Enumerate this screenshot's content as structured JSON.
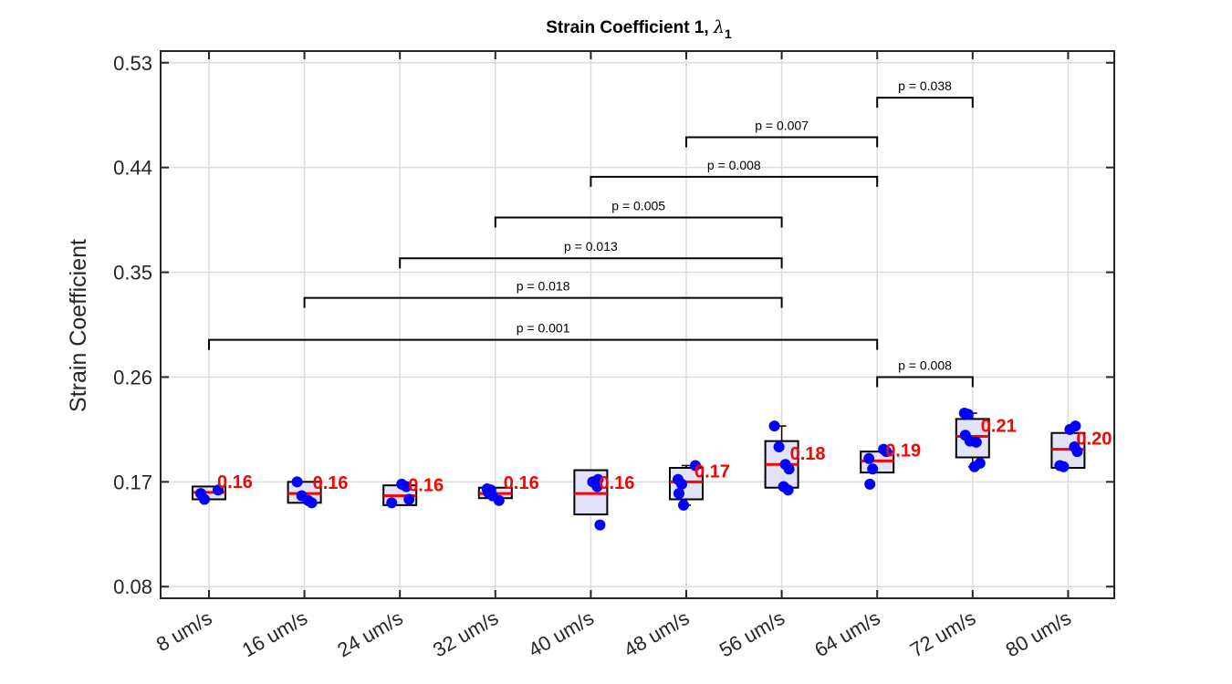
{
  "chart_data": {
    "type": "box",
    "title": "Strain Coefficient 1, ",
    "title_symbol": "λ",
    "title_subscript": "1",
    "xlabel": "",
    "ylabel": "Strain Coefficient",
    "ylim": [
      0.07,
      0.54
    ],
    "yticks": [
      0.08,
      0.17,
      0.26,
      0.35,
      0.44,
      0.53
    ],
    "ytick_labels": [
      "0.08",
      "0.17",
      "0.26",
      "0.35",
      "0.44",
      "0.53"
    ],
    "grid": true,
    "categories": [
      "8 um/s",
      "16 um/s",
      "24 um/s",
      "32 um/s",
      "40 um/s",
      "48 um/s",
      "56 um/s",
      "64 um/s",
      "72 um/s",
      "80 um/s"
    ],
    "boxes": [
      {
        "q1": 0.155,
        "median": 0.161,
        "q3": 0.166,
        "wlow": 0.155,
        "whigh": 0.166,
        "label": "0.16"
      },
      {
        "q1": 0.152,
        "median": 0.16,
        "q3": 0.17,
        "wlow": 0.152,
        "whigh": 0.17,
        "label": "0.16"
      },
      {
        "q1": 0.15,
        "median": 0.158,
        "q3": 0.167,
        "wlow": 0.15,
        "whigh": 0.167,
        "label": "0.16"
      },
      {
        "q1": 0.156,
        "median": 0.16,
        "q3": 0.165,
        "wlow": 0.156,
        "whigh": 0.165,
        "label": "0.16"
      },
      {
        "q1": 0.142,
        "median": 0.16,
        "q3": 0.18,
        "wlow": 0.142,
        "whigh": 0.18,
        "label": "0.16"
      },
      {
        "q1": 0.155,
        "median": 0.17,
        "q3": 0.182,
        "wlow": 0.15,
        "whigh": 0.184,
        "label": "0.17"
      },
      {
        "q1": 0.165,
        "median": 0.185,
        "q3": 0.205,
        "wlow": 0.165,
        "whigh": 0.218,
        "label": "0.18"
      },
      {
        "q1": 0.178,
        "median": 0.188,
        "q3": 0.196,
        "wlow": 0.178,
        "whigh": 0.196,
        "label": "0.19"
      },
      {
        "q1": 0.191,
        "median": 0.209,
        "q3": 0.224,
        "wlow": 0.183,
        "whigh": 0.229,
        "label": "0.21"
      },
      {
        "q1": 0.182,
        "median": 0.198,
        "q3": 0.212,
        "wlow": 0.182,
        "whigh": 0.212,
        "label": "0.20"
      }
    ],
    "points": [
      [
        0.155,
        0.16,
        0.163
      ],
      [
        0.152,
        0.154,
        0.158,
        0.17
      ],
      [
        0.152,
        0.155,
        0.166,
        0.168
      ],
      [
        0.154,
        0.158,
        0.161,
        0.163,
        0.164
      ],
      [
        0.133,
        0.166,
        0.17,
        0.172
      ],
      [
        0.15,
        0.16,
        0.168,
        0.172,
        0.184
      ],
      [
        0.163,
        0.166,
        0.181,
        0.185,
        0.2,
        0.218
      ],
      [
        0.168,
        0.181,
        0.19,
        0.196,
        0.198
      ],
      [
        0.183,
        0.186,
        0.204,
        0.205,
        0.21,
        0.228,
        0.229
      ],
      [
        0.183,
        0.184,
        0.196,
        0.2,
        0.215,
        0.218
      ]
    ],
    "significance": [
      {
        "from": 7,
        "to": 8,
        "y": 0.5,
        "label": "p = 0.038"
      },
      {
        "from": 5,
        "to": 7,
        "y": 0.466,
        "label": "p = 0.007"
      },
      {
        "from": 4,
        "to": 7,
        "y": 0.432,
        "label": "p = 0.008"
      },
      {
        "from": 3,
        "to": 6,
        "y": 0.397,
        "label": "p = 0.005"
      },
      {
        "from": 2,
        "to": 6,
        "y": 0.362,
        "label": "p = 0.013"
      },
      {
        "from": 1,
        "to": 6,
        "y": 0.328,
        "label": "p = 0.018"
      },
      {
        "from": 0,
        "to": 7,
        "y": 0.292,
        "label": "p = 0.001"
      },
      {
        "from": 7,
        "to": 8,
        "y": 0.26,
        "label": "p = 0.008"
      }
    ],
    "colors": {
      "box_fill": "#e2e2f8",
      "box_edge": "#000000",
      "median": "#ff0000",
      "points": "#0000ff",
      "median_label": "#ff0000",
      "grid": "#dcdcdc",
      "axes": "#262626"
    }
  }
}
